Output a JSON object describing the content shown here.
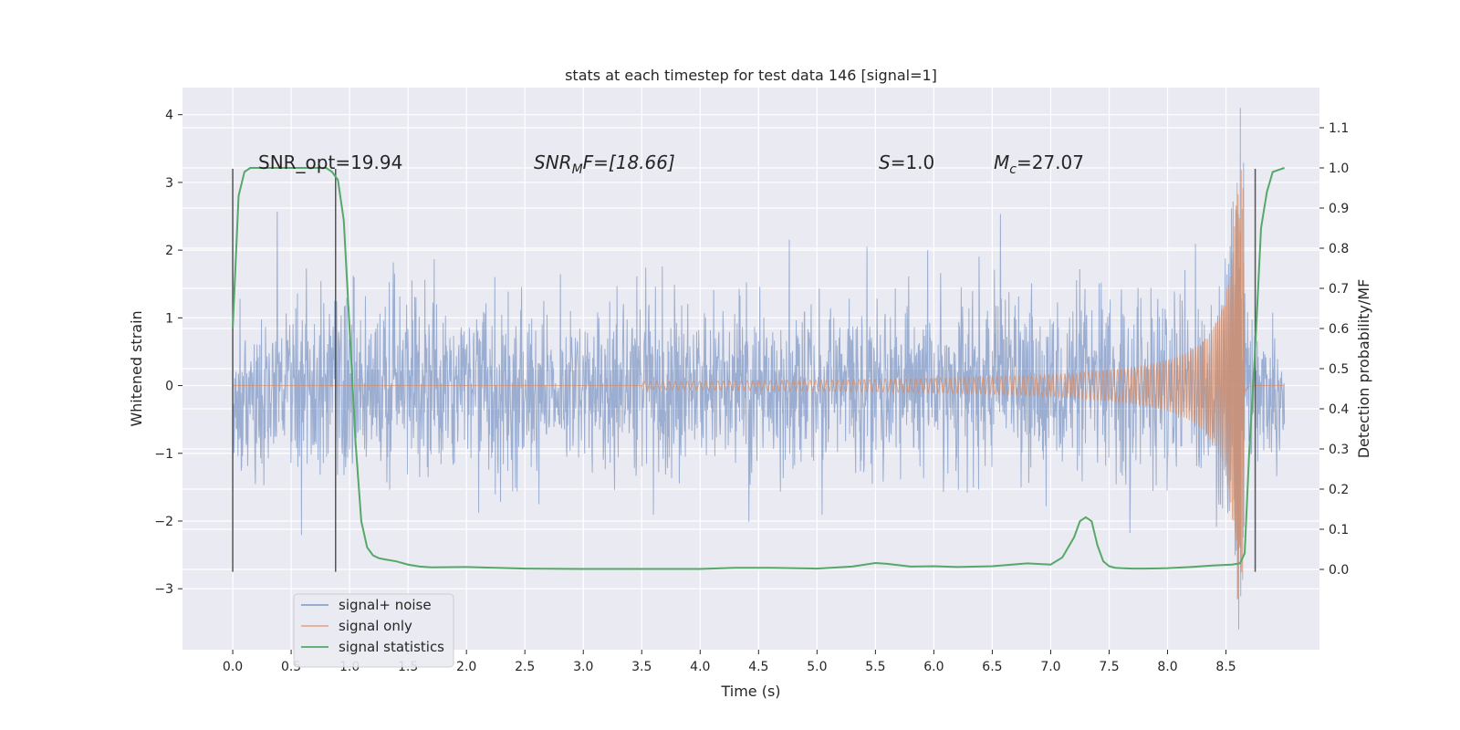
{
  "chart_data": {
    "type": "line",
    "title": "stats at each timestep for test data 146 [signal=1]",
    "xlabel": "Time (s)",
    "ylabel": "Whitened strain",
    "y2label": "Detection probability/MF",
    "xlim": [
      -0.43,
      9.3
    ],
    "ylim": [
      -3.9,
      4.4
    ],
    "y2lim": [
      -0.2,
      1.2
    ],
    "x_ticks": [
      0.0,
      0.5,
      1.0,
      1.5,
      2.0,
      2.5,
      3.0,
      3.5,
      4.0,
      4.5,
      5.0,
      5.5,
      6.0,
      6.5,
      7.0,
      7.5,
      8.0,
      8.5
    ],
    "x_tick_labels": [
      "0.0",
      "0.5",
      "1.0",
      "1.5",
      "2.0",
      "2.5",
      "3.0",
      "3.5",
      "4.0",
      "4.5",
      "5.0",
      "5.5",
      "6.0",
      "6.5",
      "7.0",
      "7.5",
      "8.0",
      "8.5"
    ],
    "y_ticks": [
      4,
      3,
      2,
      1,
      0,
      -1,
      -2,
      -3
    ],
    "y_tick_labels": [
      "4",
      "3",
      "2",
      "1",
      "0",
      "−1",
      "−2",
      "−3"
    ],
    "y2_ticks": [
      1.1,
      1.0,
      0.9,
      0.8,
      0.7,
      0.6,
      0.5,
      0.4,
      0.3,
      0.2,
      0.1,
      0.0
    ],
    "y2_tick_labels": [
      "1.1",
      "1.0",
      "0.9",
      "0.8",
      "0.7",
      "0.6",
      "0.5",
      "0.4",
      "0.3",
      "0.2",
      "0.1",
      "0.0"
    ],
    "annotations": {
      "snr_opt": "SNR_opt=19.94",
      "snr_mf_main": "SNR",
      "snr_mf_sub": "M",
      "snr_mf_tail": "F=[18.66]",
      "s_main": "S",
      "s_tail": "=1.0",
      "mc_main": "M",
      "mc_sub": "c",
      "mc_tail": "=27.07"
    },
    "vertical_lines_s": [
      0.0,
      0.88,
      8.75
    ],
    "vertical_line_range": [
      -2.75,
      3.2
    ],
    "legend": {
      "position": "lower-left",
      "entries": [
        "signal+ noise",
        "signal only",
        "signal statistics"
      ]
    },
    "series": [
      {
        "name": "signal+ noise",
        "color": "#4c72b0",
        "alpha": 0.5,
        "description_values": {
          "t_start": 0.0,
          "t_end": 9.0,
          "typical_amplitude": 1.0
        }
      },
      {
        "name": "signal only",
        "color": "#dd8452",
        "chirp": {
          "t_start": 3.5,
          "t_merger": 8.66,
          "peak_amplitude": 3.2,
          "t_end": 8.75
        }
      },
      {
        "name": "signal statistics",
        "color": "#55a868",
        "axis": "right",
        "x": [
          0.0,
          0.05,
          0.1,
          0.15,
          0.2,
          0.3,
          0.4,
          0.5,
          0.6,
          0.7,
          0.8,
          0.85,
          0.9,
          0.95,
          1.0,
          1.05,
          1.1,
          1.15,
          1.2,
          1.25,
          1.3,
          1.4,
          1.5,
          1.6,
          1.7,
          2.0,
          2.5,
          3.0,
          3.5,
          4.0,
          4.3,
          4.6,
          5.0,
          5.3,
          5.5,
          5.6,
          5.8,
          6.0,
          6.2,
          6.5,
          6.8,
          7.0,
          7.1,
          7.2,
          7.25,
          7.3,
          7.35,
          7.4,
          7.45,
          7.5,
          7.55,
          7.6,
          7.7,
          7.8,
          8.0,
          8.2,
          8.4,
          8.55,
          8.62,
          8.66,
          8.7,
          8.75,
          8.8,
          8.85,
          8.9,
          8.95,
          9.0
        ],
        "values": [
          0.6,
          0.93,
          0.99,
          1.0,
          1.0,
          1.0,
          1.0,
          1.0,
          1.0,
          1.0,
          1.0,
          0.99,
          0.97,
          0.87,
          0.6,
          0.32,
          0.12,
          0.055,
          0.035,
          0.028,
          0.025,
          0.02,
          0.012,
          0.007,
          0.005,
          0.006,
          0.002,
          0.001,
          0.001,
          0.001,
          0.004,
          0.004,
          0.002,
          0.007,
          0.016,
          0.014,
          0.007,
          0.008,
          0.006,
          0.008,
          0.015,
          0.012,
          0.03,
          0.08,
          0.12,
          0.13,
          0.12,
          0.06,
          0.02,
          0.008,
          0.004,
          0.003,
          0.002,
          0.002,
          0.003,
          0.006,
          0.01,
          0.012,
          0.015,
          0.04,
          0.3,
          0.55,
          0.85,
          0.94,
          0.99,
          0.995,
          1.0
        ]
      }
    ]
  }
}
